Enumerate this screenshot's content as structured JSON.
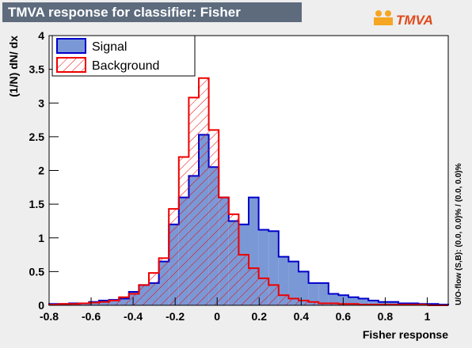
{
  "chart_data": {
    "type": "histogram",
    "title": "TMVA response for classifier: Fisher",
    "logo": "TMVA",
    "xlabel": "Fisher response",
    "ylabel": "(1/N) dN/ dx",
    "annotation": "U/O-flow (S,B): (0.0, 0.0)% / (0.0, 0.0)%",
    "legend": "upper left",
    "xlim": [
      -0.8,
      1.1
    ],
    "ylim": [
      0,
      4
    ],
    "xticks": [
      -0.8,
      -0.6,
      -0.4,
      -0.2,
      0,
      0.2,
      0.4,
      0.6,
      0.8,
      1
    ],
    "yticks": [
      0,
      0.5,
      1,
      1.5,
      2,
      2.5,
      3,
      3.5,
      4
    ],
    "bins": [
      -0.8,
      -0.7525,
      -0.705,
      -0.6575,
      -0.61,
      -0.5625,
      -0.515,
      -0.4675,
      -0.42,
      -0.3725,
      -0.325,
      -0.2775,
      -0.23,
      -0.1825,
      -0.135,
      -0.0875,
      -0.04,
      0.0075,
      0.055,
      0.1025,
      0.15,
      0.1975,
      0.245,
      0.2925,
      0.34,
      0.3875,
      0.435,
      0.4825,
      0.53,
      0.5775,
      0.625,
      0.6725,
      0.72,
      0.7675,
      0.815,
      0.8625,
      0.91,
      0.9575,
      1.005,
      1.0525,
      1.1
    ],
    "series": [
      {
        "name": "Signal",
        "color": "#0000cc",
        "fill": "#7b98d6",
        "hatch": false,
        "values": [
          0.02,
          0.02,
          0.03,
          0.03,
          0.05,
          0.07,
          0.08,
          0.1,
          0.2,
          0.3,
          0.33,
          0.65,
          1.2,
          1.6,
          1.92,
          2.53,
          2.05,
          1.6,
          1.25,
          1.2,
          1.6,
          1.12,
          1.1,
          0.72,
          0.65,
          0.5,
          0.33,
          0.33,
          0.17,
          0.15,
          0.12,
          0.1,
          0.07,
          0.05,
          0.05,
          0.03,
          0.03,
          0.02,
          0.02,
          0.01
        ]
      },
      {
        "name": "Background",
        "color": "#ee0000",
        "fill": "none",
        "hatch": true,
        "values": [
          0.01,
          0.02,
          0.02,
          0.03,
          0.04,
          0.05,
          0.07,
          0.12,
          0.17,
          0.3,
          0.48,
          0.7,
          1.43,
          2.2,
          3.08,
          3.37,
          2.6,
          1.6,
          1.35,
          0.75,
          0.55,
          0.4,
          0.3,
          0.15,
          0.1,
          0.07,
          0.05,
          0.03,
          0.03,
          0.02,
          0.02,
          0.01,
          0.01,
          0.01,
          0.01,
          0.01,
          0.01,
          0.01,
          0,
          0
        ]
      }
    ]
  }
}
